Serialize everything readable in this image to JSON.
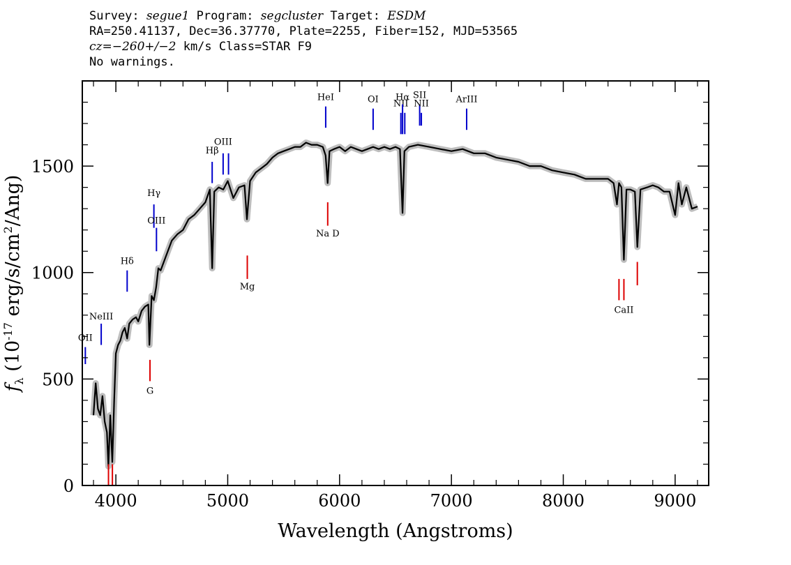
{
  "header": {
    "line1": {
      "survey_label": "Survey:",
      "survey": "segue1",
      "program_label": "Program:",
      "program": "segcluster",
      "target_label": "Target:",
      "target": "ESDM"
    },
    "line2": "RA=250.41137, Dec=36.37770, Plate=2255, Fiber=152, MJD=53565",
    "line3": {
      "cz": "cz=−260+/−2",
      "rest": "km/s Class=STAR F9"
    },
    "line4": "No warnings."
  },
  "colors": {
    "flux": "#000000",
    "error_band": "#bdbdbd",
    "emission_marker": "#0000cc",
    "absorption_marker": "#dd0000"
  },
  "chart_data": {
    "type": "line",
    "xlabel": "Wavelength (Angstroms)",
    "ylabel": "f_λ (10^-17 erg/s/cm^2/Ang)",
    "xlim": [
      3700,
      9300
    ],
    "ylim": [
      0,
      1900
    ],
    "x_ticks": [
      4000,
      5000,
      6000,
      7000,
      8000,
      9000
    ],
    "y_ticks": [
      0,
      500,
      1000,
      1500
    ],
    "grid": false,
    "series": [
      {
        "x": [
          3800,
          3820,
          3840,
          3860,
          3880,
          3900,
          3920,
          3933,
          3950,
          3968,
          3985,
          4000,
          4020,
          4040,
          4060,
          4080,
          4101,
          4120,
          4150,
          4180,
          4200,
          4230,
          4260,
          4290,
          4300,
          4320,
          4340,
          4360,
          4380,
          4400,
          4450,
          4500,
          4550,
          4600,
          4650,
          4700,
          4750,
          4800,
          4840,
          4861,
          4880,
          4920,
          4960,
          5000,
          5050,
          5100,
          5150,
          5172,
          5200,
          5250,
          5300,
          5350,
          5400,
          5450,
          5500,
          5550,
          5600,
          5650,
          5700,
          5750,
          5800,
          5850,
          5875,
          5893,
          5910,
          5950,
          6000,
          6050,
          6100,
          6150,
          6200,
          6250,
          6300,
          6350,
          6400,
          6450,
          6500,
          6540,
          6563,
          6580,
          6620,
          6700,
          6800,
          6900,
          7000,
          7100,
          7200,
          7300,
          7400,
          7500,
          7600,
          7700,
          7800,
          7900,
          8000,
          8100,
          8200,
          8300,
          8400,
          8450,
          8480,
          8498,
          8520,
          8542,
          8565,
          8600,
          8640,
          8662,
          8690,
          8750,
          8800,
          8850,
          8900,
          8950,
          9000,
          9030,
          9060,
          9100,
          9150,
          9200
        ],
        "y": [
          330,
          480,
          360,
          330,
          420,
          300,
          250,
          90,
          330,
          110,
          400,
          620,
          660,
          680,
          720,
          740,
          690,
          760,
          780,
          790,
          770,
          820,
          840,
          850,
          660,
          890,
          870,
          930,
          1020,
          1010,
          1080,
          1150,
          1180,
          1200,
          1250,
          1270,
          1300,
          1330,
          1390,
          1020,
          1380,
          1400,
          1390,
          1430,
          1350,
          1400,
          1410,
          1250,
          1430,
          1470,
          1490,
          1510,
          1540,
          1560,
          1570,
          1580,
          1590,
          1590,
          1610,
          1600,
          1600,
          1590,
          1550,
          1420,
          1570,
          1580,
          1590,
          1570,
          1590,
          1580,
          1570,
          1580,
          1590,
          1580,
          1590,
          1580,
          1590,
          1580,
          1280,
          1570,
          1590,
          1600,
          1590,
          1580,
          1570,
          1580,
          1560,
          1560,
          1540,
          1530,
          1520,
          1500,
          1500,
          1480,
          1470,
          1460,
          1440,
          1440,
          1440,
          1420,
          1320,
          1420,
          1400,
          1060,
          1390,
          1390,
          1380,
          1120,
          1390,
          1400,
          1410,
          1400,
          1380,
          1380,
          1270,
          1420,
          1320,
          1400,
          1300,
          1310
        ]
      }
    ],
    "emission_lines": [
      {
        "label": "OII",
        "x": 3727,
        "y_label": 680,
        "y_top": 650,
        "y_bot": 570
      },
      {
        "label": "NeIII",
        "x": 3869,
        "y_label": 780,
        "y_top": 760,
        "y_bot": 660
      },
      {
        "label": "Hδ",
        "x": 4101,
        "y_label": 1040,
        "y_top": 1010,
        "y_bot": 910
      },
      {
        "label": "Hγ",
        "x": 4340,
        "y_label": 1360,
        "y_top": 1320,
        "y_bot": 1210
      },
      {
        "label": "OIII",
        "x": 4363,
        "y_label": 1230,
        "y_top": 1210,
        "y_bot": 1100
      },
      {
        "label": "Hβ",
        "x": 4861,
        "y_label": 1560,
        "y_top": 1520,
        "y_bot": 1420
      },
      {
        "label": "OIII",
        "x": 4959,
        "y_label": 1600,
        "y_top": 1560,
        "y_bot": 1460
      },
      {
        "label": "",
        "x": 5007,
        "y_label": 0,
        "y_top": 1560,
        "y_bot": 1460
      },
      {
        "label": "HeI",
        "x": 5876,
        "y_label": 1810,
        "y_top": 1780,
        "y_bot": 1680
      },
      {
        "label": "OI",
        "x": 6300,
        "y_label": 1800,
        "y_top": 1770,
        "y_bot": 1670
      },
      {
        "label": "NII",
        "x": 6548,
        "y_label": 1780,
        "y_top": 1750,
        "y_bot": 1650
      },
      {
        "label": "Hα",
        "x": 6563,
        "y_label": 1810,
        "y_top": 1790,
        "y_bot": 1650
      },
      {
        "label": "",
        "x": 6583,
        "y_label": 0,
        "y_top": 1750,
        "y_bot": 1650
      },
      {
        "label": "SII",
        "x": 6716,
        "y_label": 1820,
        "y_top": 1790,
        "y_bot": 1690
      },
      {
        "label": "NII",
        "x": 6731,
        "y_label": 1780,
        "y_top": 1750,
        "y_bot": 1690
      },
      {
        "label": "ArIII",
        "x": 7136,
        "y_label": 1800,
        "y_top": 1770,
        "y_bot": 1670
      }
    ],
    "absorption_lines": [
      {
        "label": "",
        "x": 3934,
        "y_label": 0,
        "y_top": 100,
        "y_bot": 0
      },
      {
        "label": "",
        "x": 3969,
        "y_label": 0,
        "y_top": 100,
        "y_bot": 0
      },
      {
        "label": "G",
        "x": 4305,
        "y_label": 430,
        "y_top": 590,
        "y_bot": 490
      },
      {
        "label": "Mg",
        "x": 5175,
        "y_label": 920,
        "y_top": 1080,
        "y_bot": 970
      },
      {
        "label": "Na D",
        "x": 5894,
        "y_label": 1170,
        "y_top": 1330,
        "y_bot": 1220
      },
      {
        "label": "CaII",
        "x": 8542,
        "y_label": 810,
        "y_top": 970,
        "y_bot": 870
      },
      {
        "label": "",
        "x": 8498,
        "y_label": 0,
        "y_top": 970,
        "y_bot": 870
      },
      {
        "label": "",
        "x": 8662,
        "y_label": 0,
        "y_top": 1050,
        "y_bot": 940
      }
    ]
  }
}
